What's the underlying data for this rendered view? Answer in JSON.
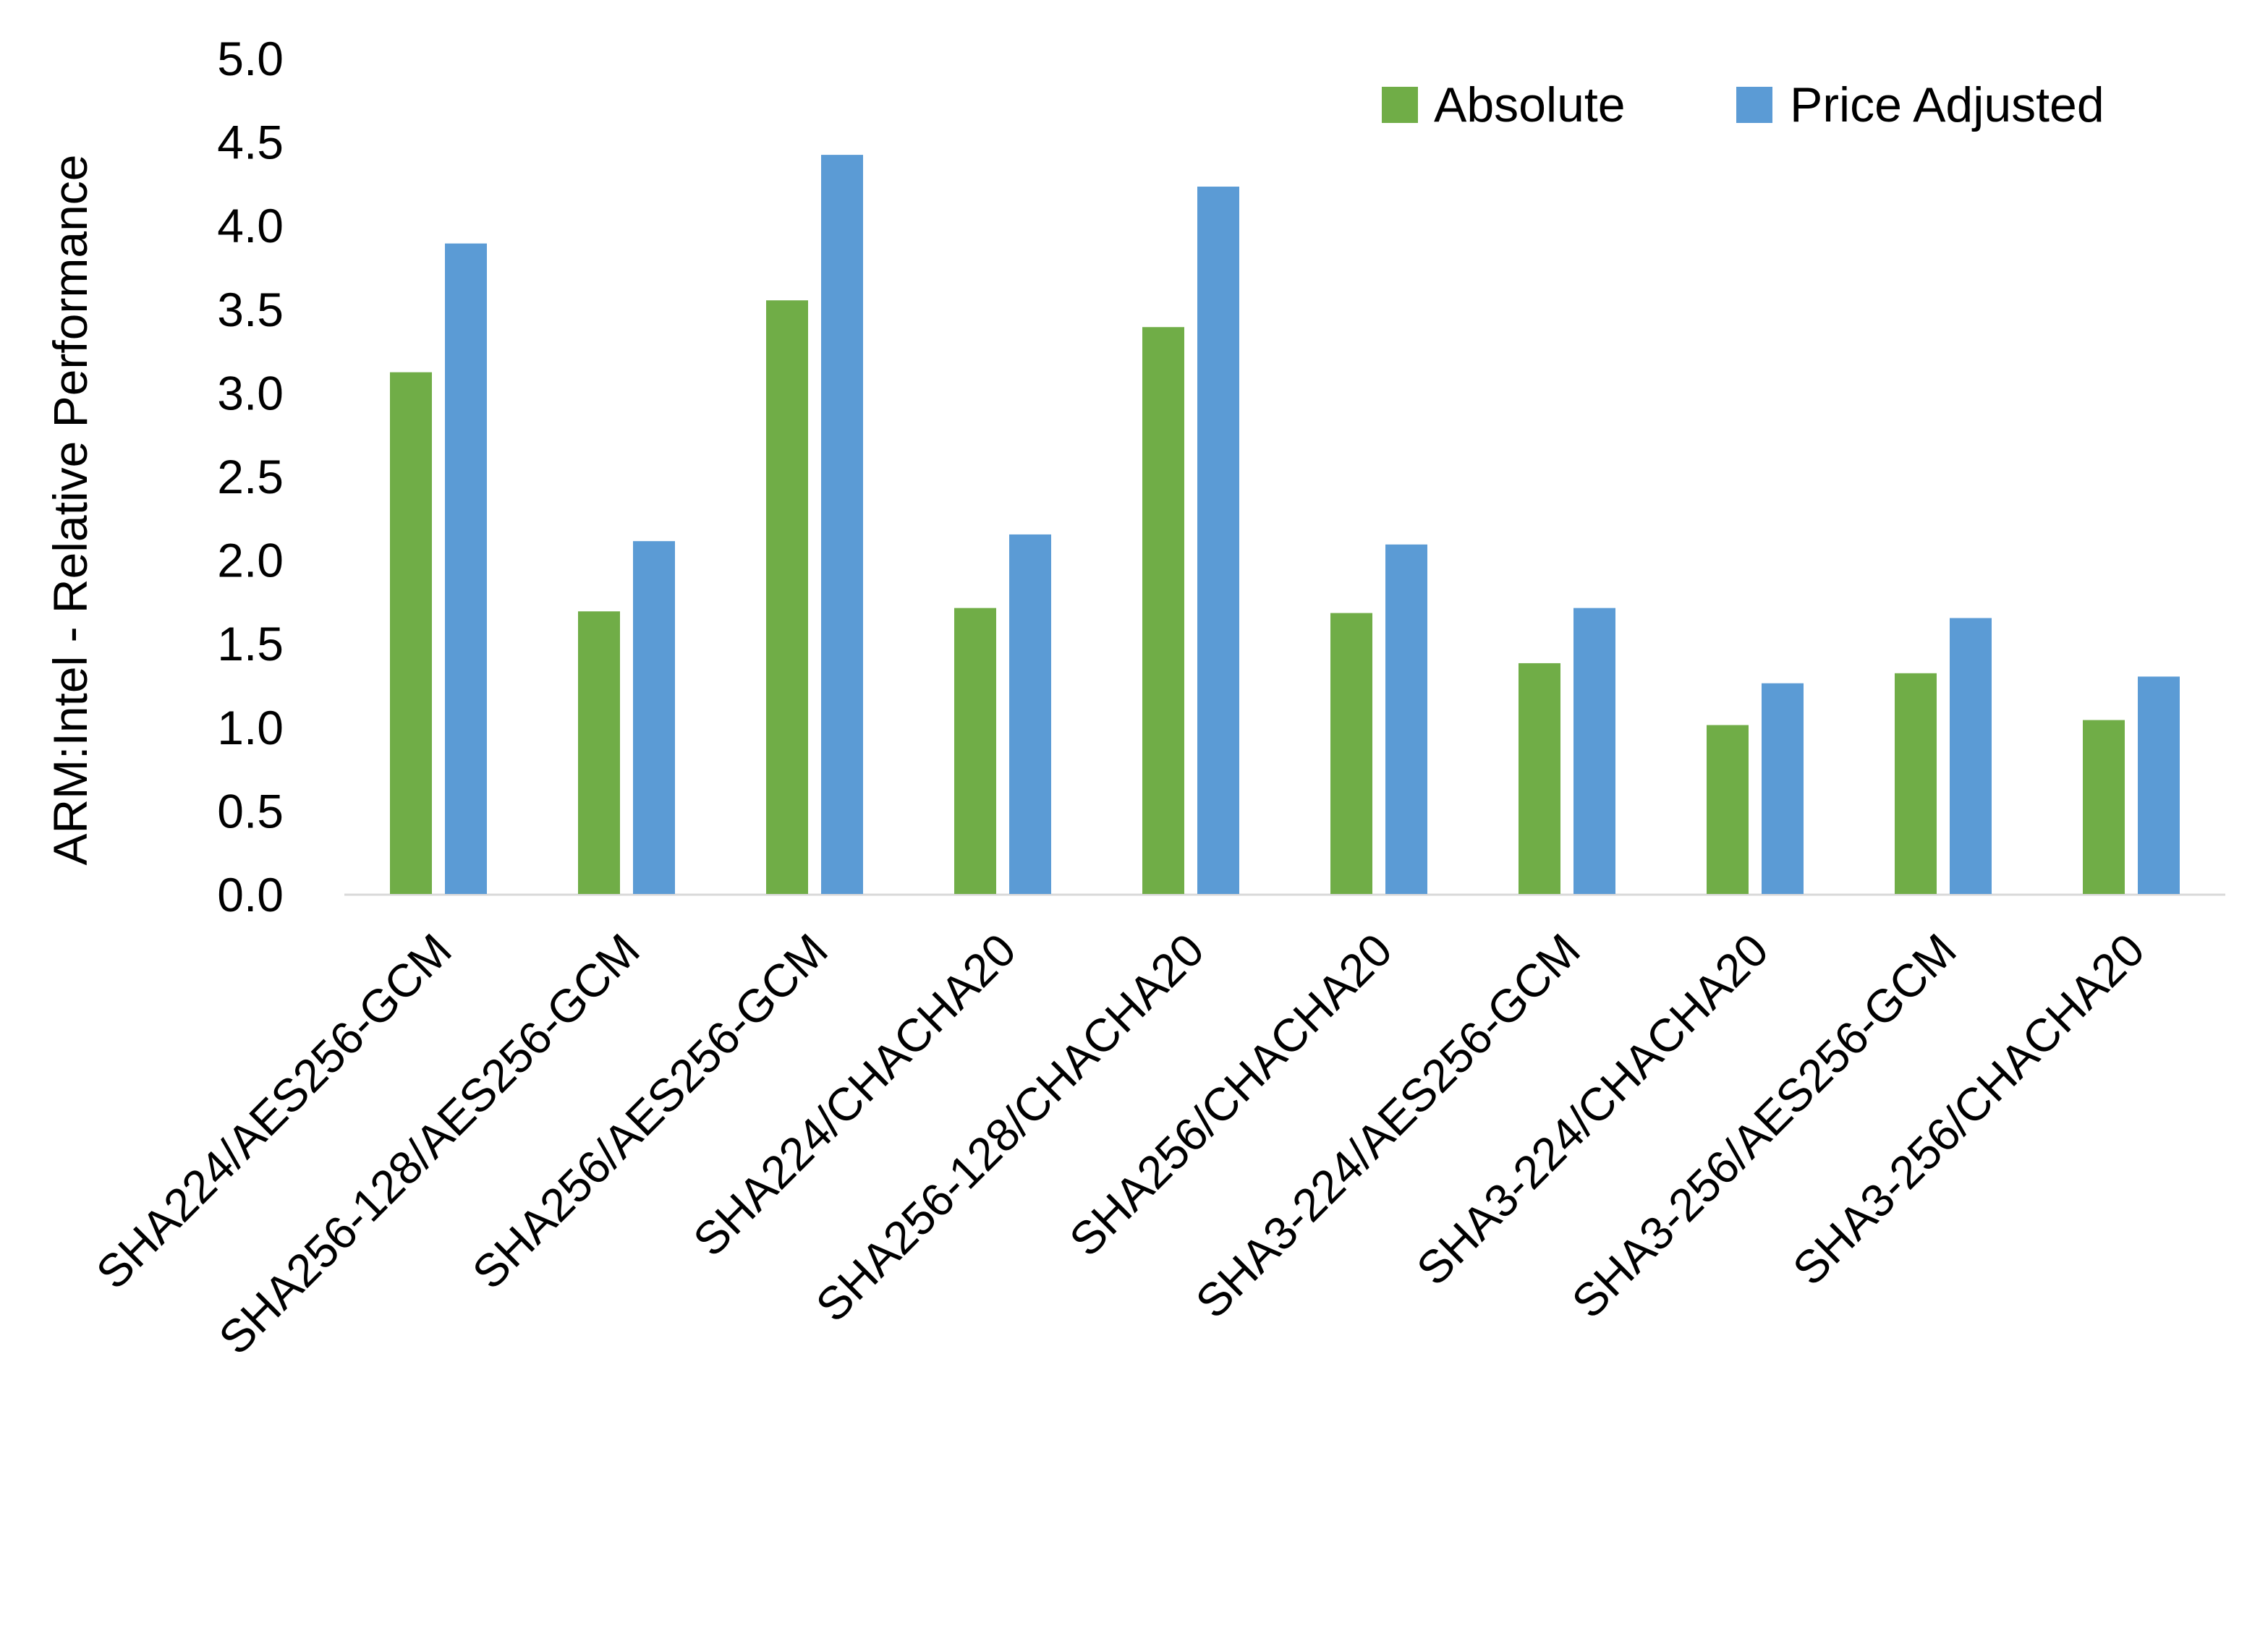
{
  "chart_data": {
    "type": "bar",
    "title": "",
    "xlabel": "",
    "ylabel": "ARM:Intel - Relative Performance",
    "ylim": [
      0,
      5
    ],
    "yticks": [
      "0.0",
      "0.5",
      "1.0",
      "1.5",
      "2.0",
      "2.5",
      "3.0",
      "3.5",
      "4.0",
      "4.5",
      "5.0"
    ],
    "grid": false,
    "legend_position": "top-right",
    "categories": [
      "SHA224/AES256-GCM",
      "SHA256-128/AES256-GCM",
      "SHA256/AES256-GCM",
      "SHA224/CHACHA20",
      "SHA256-128/CHACHA20",
      "SHA256/CHACHA20",
      "SHA3-224/AES256-GCM",
      "SHA3-224/CHACHA20",
      "SHA3-256/AES256-GCM",
      "SHA3-256/CHACHA20"
    ],
    "series": [
      {
        "name": "Absolute",
        "color": "#70ad47",
        "values": [
          3.12,
          1.69,
          3.55,
          1.71,
          3.39,
          1.68,
          1.38,
          1.01,
          1.32,
          1.04
        ]
      },
      {
        "name": "Price Adjusted",
        "color": "#5b9bd5",
        "values": [
          3.89,
          2.11,
          4.42,
          2.15,
          4.23,
          2.09,
          1.71,
          1.26,
          1.65,
          1.3
        ]
      }
    ]
  }
}
